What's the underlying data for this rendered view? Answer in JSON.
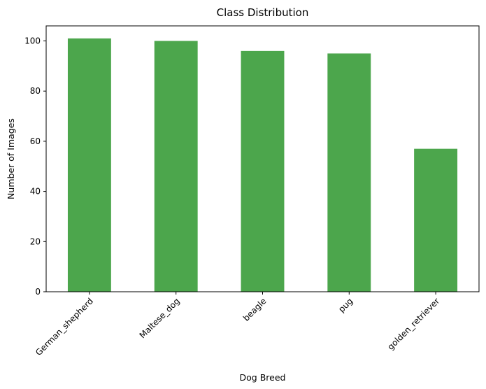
{
  "chart_data": {
    "type": "bar",
    "title": "Class Distribution",
    "xlabel": "Dog Breed",
    "ylabel": "Number of Images",
    "categories": [
      "German_shepherd",
      "Maltese_dog",
      "beagle",
      "pug",
      "golden_retriever"
    ],
    "values": [
      101,
      100,
      96,
      95,
      57
    ],
    "yticks": [
      0,
      20,
      40,
      60,
      80,
      100
    ],
    "ylim": [
      0,
      106
    ],
    "grid": false,
    "legend": "none",
    "colors": {
      "bar": "#4CA64C",
      "axis": "#000000",
      "background": "#ffffff"
    }
  }
}
